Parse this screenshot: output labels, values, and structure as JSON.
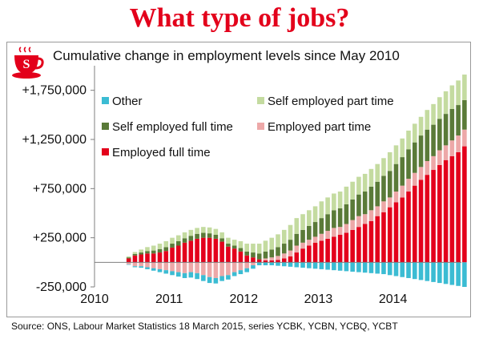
{
  "header": {
    "title": "What type of jobs?",
    "subtitle": "Cumulative change in employment levels since May 2010",
    "source": "Source: ONS, Labour Market Statistics 18 March 2015, series YCBK, YCBN, YCBQ, YCBT",
    "logo_icon": "red-coffee-cup-icon",
    "logo_letter": "S"
  },
  "colors": {
    "title": "#e3001b",
    "employed_full_time": "#e3001b",
    "employed_part_time": "#eda8a8",
    "self_employed_full_time": "#5a7a38",
    "self_employed_part_time": "#c4dba0",
    "other": "#3bbcd3"
  },
  "chart_data": {
    "type": "bar",
    "stacked": true,
    "title": "Cumulative change in employment levels since May 2010",
    "xlabel": "",
    "ylabel": "",
    "ylim": [
      -250000,
      2000000
    ],
    "y_ticks": [
      -250000,
      250000,
      750000,
      1250000,
      1750000
    ],
    "y_tick_labels": [
      "-250,000",
      "+250,000",
      "+750,000",
      "+1,250,000",
      "+1,750,000"
    ],
    "x_tick_labels": [
      "2010",
      "2011",
      "2012",
      "2013",
      "2014"
    ],
    "x_tick_positions": [
      0,
      12,
      24,
      36,
      48
    ],
    "x_range": [
      0,
      59
    ],
    "x_first_bar": 5,
    "legend_position": "top (two columns inside plot)",
    "grid": false,
    "series": [
      {
        "name": "Employed full time",
        "color": "#e3001b",
        "values": [
          40000,
          70000,
          80000,
          90000,
          90000,
          100000,
          115000,
          150000,
          170000,
          200000,
          220000,
          240000,
          250000,
          250000,
          240000,
          210000,
          160000,
          140000,
          110000,
          70000,
          50000,
          30000,
          20000,
          20000,
          25000,
          40000,
          60000,
          100000,
          140000,
          170000,
          200000,
          220000,
          240000,
          260000,
          280000,
          300000,
          330000,
          360000,
          390000,
          420000,
          470000,
          510000,
          560000,
          610000,
          660000,
          720000,
          780000,
          840000,
          890000,
          940000,
          990000,
          1040000,
          1080000,
          1120000,
          1180000
        ]
      },
      {
        "name": "Employed part time",
        "color": "#eda8a8",
        "values": [
          -20000,
          -40000,
          -40000,
          -50000,
          -60000,
          -70000,
          -80000,
          -90000,
          -100000,
          -110000,
          -100000,
          -110000,
          -130000,
          -150000,
          -160000,
          -140000,
          -130000,
          -100000,
          -80000,
          -60000,
          -30000,
          0,
          20000,
          30000,
          40000,
          50000,
          60000,
          70000,
          60000,
          60000,
          60000,
          70000,
          80000,
          90000,
          80000,
          90000,
          100000,
          110000,
          100000,
          110000,
          100000,
          110000,
          100000,
          110000,
          120000,
          130000,
          130000,
          130000,
          140000,
          140000,
          150000,
          150000,
          160000,
          170000,
          170000
        ]
      },
      {
        "name": "Self employed full time",
        "color": "#5a7a38",
        "values": [
          10000,
          15000,
          20000,
          25000,
          30000,
          35000,
          40000,
          40000,
          45000,
          45000,
          50000,
          50000,
          50000,
          45000,
          40000,
          35000,
          30000,
          30000,
          35000,
          40000,
          50000,
          60000,
          70000,
          80000,
          90000,
          100000,
          110000,
          120000,
          130000,
          140000,
          150000,
          160000,
          170000,
          180000,
          190000,
          200000,
          210000,
          220000,
          230000,
          240000,
          250000,
          260000,
          270000,
          280000,
          290000,
          300000,
          310000,
          320000,
          320000,
          320000,
          320000,
          320000,
          320000,
          310000,
          300000
        ]
      },
      {
        "name": "Self employed part time",
        "color": "#c4dba0",
        "values": [
          10000,
          20000,
          30000,
          40000,
          50000,
          55000,
          60000,
          60000,
          60000,
          60000,
          60000,
          60000,
          60000,
          60000,
          60000,
          60000,
          60000,
          60000,
          70000,
          80000,
          90000,
          100000,
          110000,
          120000,
          130000,
          140000,
          150000,
          160000,
          160000,
          160000,
          160000,
          170000,
          170000,
          170000,
          170000,
          180000,
          180000,
          180000,
          180000,
          180000,
          180000,
          180000,
          190000,
          190000,
          190000,
          190000,
          190000,
          190000,
          200000,
          210000,
          220000,
          230000,
          240000,
          250000,
          260000
        ]
      },
      {
        "name": "Other",
        "color": "#3bbcd3",
        "values": [
          -5000,
          -10000,
          -15000,
          -20000,
          -25000,
          -30000,
          -35000,
          -40000,
          -45000,
          -50000,
          -55000,
          -60000,
          -60000,
          -60000,
          -55000,
          -50000,
          -45000,
          -40000,
          -40000,
          -40000,
          -35000,
          -30000,
          -30000,
          -30000,
          -35000,
          -40000,
          -45000,
          -50000,
          -55000,
          -60000,
          -65000,
          -70000,
          -75000,
          -80000,
          -85000,
          -90000,
          -95000,
          -100000,
          -105000,
          -110000,
          -115000,
          -120000,
          -130000,
          -140000,
          -150000,
          -160000,
          -170000,
          -180000,
          -190000,
          -200000,
          -210000,
          -220000,
          -230000,
          -240000,
          -250000
        ]
      }
    ]
  }
}
